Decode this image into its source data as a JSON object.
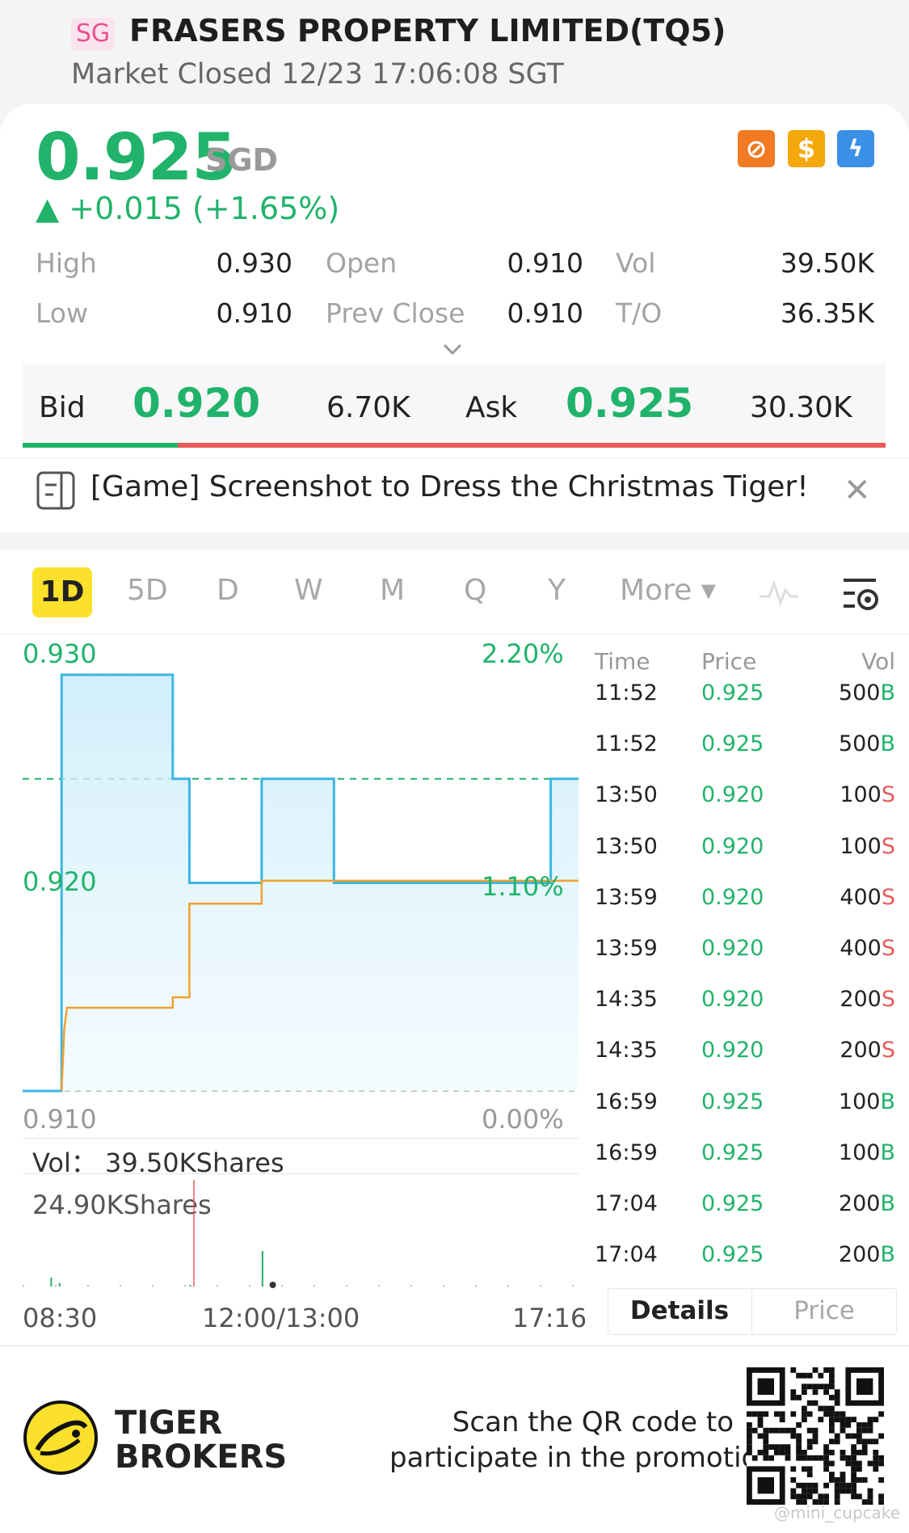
{
  "header": {
    "exchange_badge": "SG",
    "title": "FRASERS PROPERTY LIMITED(TQ5)",
    "status": "Market Closed 12/23 17:06:08 SGT"
  },
  "quote": {
    "price": "0.925",
    "currency": "SGD",
    "change": "▲ +0.015 (+1.65%)",
    "stats": {
      "high_label": "High",
      "high": "0.930",
      "low_label": "Low",
      "low": "0.910",
      "open_label": "Open",
      "open": "0.910",
      "prev_close_label": "Prev Close",
      "prev_close": "0.910",
      "vol_label": "Vol",
      "vol": "39.50K",
      "turnover_label": "T/O",
      "turnover": "36.35K"
    },
    "icons": [
      "no-short-icon",
      "dollar-icon",
      "lightning-icon"
    ],
    "icon_glyphs": [
      "⊘",
      "$",
      "ϟ"
    ]
  },
  "bidask": {
    "bid_label": "Bid",
    "bid": "0.920",
    "bid_size": "6.70K",
    "ask_label": "Ask",
    "ask": "0.925",
    "ask_size": "30.30K",
    "bid_fraction": 0.18
  },
  "promo": {
    "text": "[Game] Screenshot to Dress the Christmas Tiger!",
    "close": "✕"
  },
  "tabs": [
    "1D",
    "5D",
    "D",
    "W",
    "M",
    "Q",
    "Y",
    "More ▾"
  ],
  "chart": {
    "y_top": "0.930",
    "y_top_pct": "2.20%",
    "y_mid": "0.920",
    "y_mid_pct": "1.10%",
    "y_bottom": "0.910",
    "y_bottom_pct": "0.00%",
    "vol_label": "Vol：  39.50KShares",
    "vol_max": "24.90KShares",
    "time_start": "08:30",
    "time_mid": "12:00/13:00",
    "time_end": "17:16"
  },
  "chart_data": {
    "type": "line",
    "title": "",
    "xlabel": "",
    "ylabel": "",
    "ylim": [
      0.91,
      0.93
    ],
    "x_ticks": [
      "08:30",
      "12:00/13:00",
      "17:16"
    ],
    "series": [
      {
        "role": "price",
        "color": "#3bb6e4",
        "points": [
          [
            0.0,
            0.91
          ],
          [
            0.07,
            0.91
          ],
          [
            0.07,
            0.93
          ],
          [
            0.27,
            0.93
          ],
          [
            0.27,
            0.925
          ],
          [
            0.3,
            0.925
          ],
          [
            0.3,
            0.92
          ],
          [
            0.43,
            0.92
          ],
          [
            0.43,
            0.925
          ],
          [
            0.56,
            0.925
          ],
          [
            0.56,
            0.92
          ],
          [
            0.95,
            0.92
          ],
          [
            0.95,
            0.925
          ],
          [
            1.0,
            0.925
          ]
        ]
      },
      {
        "role": "average",
        "color": "#f0a030",
        "points": [
          [
            0.07,
            0.91
          ],
          [
            0.075,
            0.913
          ],
          [
            0.08,
            0.914
          ],
          [
            0.27,
            0.914
          ],
          [
            0.27,
            0.9145
          ],
          [
            0.3,
            0.9145
          ],
          [
            0.3,
            0.919
          ],
          [
            0.43,
            0.919
          ],
          [
            0.43,
            0.9201
          ],
          [
            1.0,
            0.9201
          ]
        ]
      }
    ],
    "reference_line": 0.925,
    "volume_bars": [
      [
        0.05,
        0.1
      ],
      [
        0.065,
        0.04
      ],
      [
        0.3,
        0.0
      ],
      [
        0.43,
        0.4
      ],
      [
        0.45,
        0.05
      ]
    ]
  },
  "ticks": {
    "headers": [
      "Time",
      "Price",
      "Vol"
    ],
    "rows": [
      {
        "time": "11:52",
        "price": "0.925",
        "vol": "500",
        "side": "B"
      },
      {
        "time": "11:52",
        "price": "0.925",
        "vol": "500",
        "side": "B"
      },
      {
        "time": "13:50",
        "price": "0.920",
        "vol": "100",
        "side": "S"
      },
      {
        "time": "13:50",
        "price": "0.920",
        "vol": "100",
        "side": "S"
      },
      {
        "time": "13:59",
        "price": "0.920",
        "vol": "400",
        "side": "S"
      },
      {
        "time": "13:59",
        "price": "0.920",
        "vol": "400",
        "side": "S"
      },
      {
        "time": "14:35",
        "price": "0.920",
        "vol": "200",
        "side": "S"
      },
      {
        "time": "14:35",
        "price": "0.920",
        "vol": "200",
        "side": "S"
      },
      {
        "time": "16:59",
        "price": "0.925",
        "vol": "100",
        "side": "B"
      },
      {
        "time": "16:59",
        "price": "0.925",
        "vol": "100",
        "side": "B"
      },
      {
        "time": "17:04",
        "price": "0.925",
        "vol": "200",
        "side": "B"
      },
      {
        "time": "17:04",
        "price": "0.925",
        "vol": "200",
        "side": "B"
      }
    ],
    "details_label": "Details",
    "price_label": "Price"
  },
  "footer": {
    "brand_line1": "TIGER",
    "brand_line2": "BROKERS",
    "scan_line1": "Scan the QR code to",
    "scan_line2": "participate in the promotion",
    "watermark": "@mini_cupcake"
  },
  "colors": {
    "up": "#21b36b",
    "down": "#e85a5a",
    "accent": "#fbe12c",
    "price_line": "#3bb6e4",
    "avg_line": "#f0a030"
  }
}
